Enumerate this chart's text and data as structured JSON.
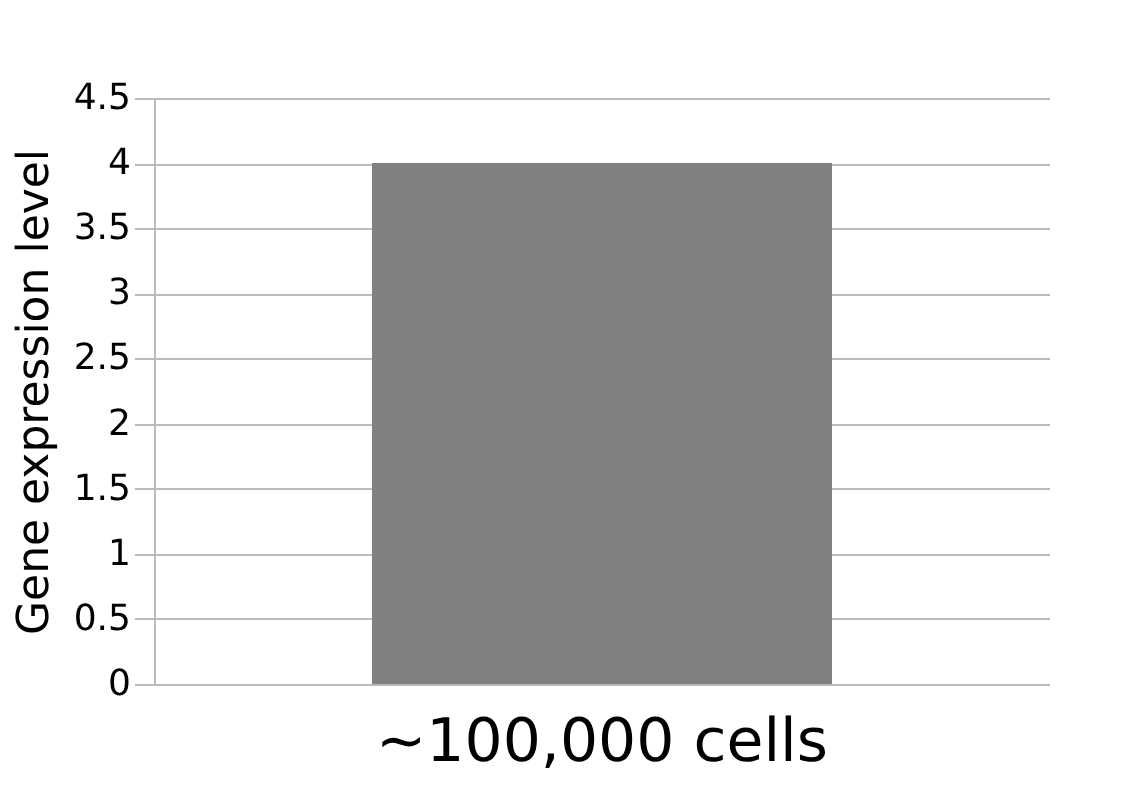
{
  "chart_data": {
    "type": "bar",
    "ylabel": "Gene expression level",
    "categories": [
      "~100,000 cells"
    ],
    "values": [
      4
    ],
    "color": "#808080",
    "ylim": [
      0,
      4.5
    ],
    "yticks": [
      0,
      0.5,
      1,
      1.5,
      2,
      2.5,
      3,
      3.5,
      4,
      4.5
    ],
    "grid": "y"
  }
}
